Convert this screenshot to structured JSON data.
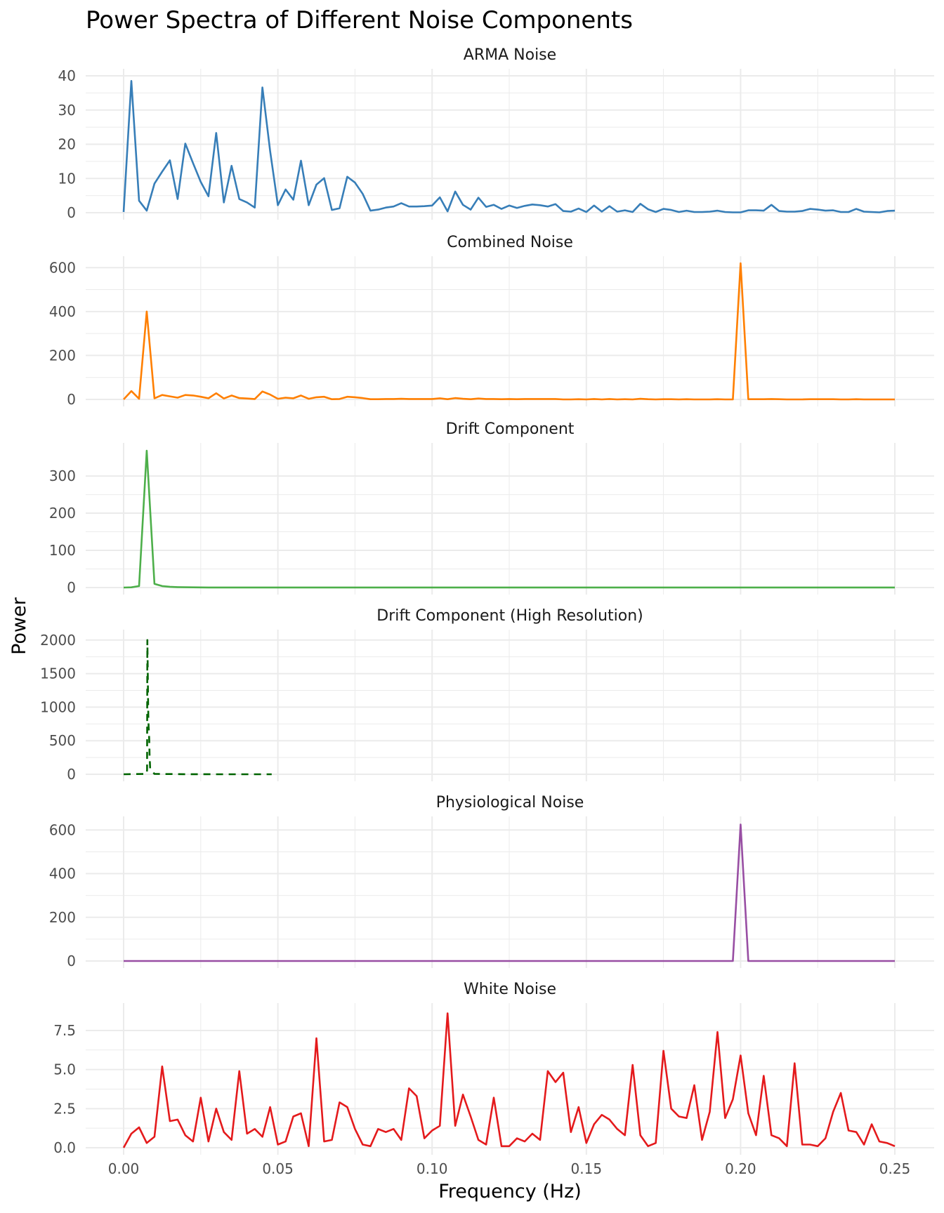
{
  "chart_data": {
    "type": "line",
    "title": "Power Spectra of Different Noise Components",
    "xlabel": "Frequency (Hz)",
    "ylabel": "Power",
    "xlim": [
      0,
      0.25
    ],
    "x_ticks": [
      "0.00",
      "0.05",
      "0.10",
      "0.15",
      "0.20",
      "0.25"
    ],
    "grid": true,
    "legend": "none",
    "panels": [
      {
        "name": "ARMA Noise",
        "color": "#377EB8",
        "dash": false,
        "ylim": [
          0,
          40
        ],
        "y_ticks": [
          0,
          10,
          20,
          30,
          40
        ],
        "y_tick_labels": [
          "0",
          "10",
          "20",
          "30",
          "40"
        ],
        "x_step": 0.0025,
        "values": [
          0.2,
          38.5,
          3.5,
          0.6,
          8.5,
          12.0,
          15.3,
          4.0,
          20.2,
          14.5,
          9.0,
          4.8,
          23.3,
          3.0,
          13.7,
          4.0,
          3.0,
          1.5,
          36.6,
          18.0,
          2.2,
          6.8,
          3.8,
          15.2,
          2.2,
          8.2,
          10.1,
          0.8,
          1.3,
          10.5,
          8.8,
          5.5,
          0.6,
          0.9,
          1.5,
          1.8,
          2.8,
          1.8,
          1.8,
          1.9,
          2.1,
          4.5,
          0.4,
          6.2,
          2.3,
          0.9,
          4.4,
          1.7,
          2.3,
          1.1,
          2.1,
          1.4,
          2.0,
          2.4,
          2.2,
          1.8,
          2.5,
          0.5,
          0.3,
          1.2,
          0.2,
          2.1,
          0.3,
          1.9,
          0.3,
          0.7,
          0.2,
          2.6,
          1.0,
          0.2,
          1.1,
          0.8,
          0.2,
          0.6,
          0.2,
          0.2,
          0.3,
          0.6,
          0.2,
          0.1,
          0.1,
          0.7,
          0.7,
          0.6,
          2.3,
          0.5,
          0.3,
          0.3,
          0.5,
          1.1,
          0.9,
          0.6,
          0.7,
          0.2,
          0.2,
          1.1,
          0.3,
          0.2,
          0.1,
          0.5,
          0.6
        ]
      },
      {
        "name": "Combined Noise",
        "color": "#FF7F00",
        "dash": false,
        "ylim": [
          0,
          620
        ],
        "y_ticks": [
          0,
          200,
          400,
          600
        ],
        "y_tick_labels": [
          "0",
          "200",
          "400",
          "600"
        ],
        "x_step": 0.0025,
        "values": [
          0,
          38,
          3,
          400,
          5,
          20,
          14,
          8,
          20,
          18,
          12,
          5,
          28,
          4,
          18,
          6,
          4,
          2,
          36,
          22,
          3,
          8,
          5,
          18,
          3,
          10,
          12,
          1,
          2,
          12,
          10,
          6,
          1,
          1,
          2,
          2,
          3,
          2,
          2,
          2,
          2,
          5,
          1,
          6,
          3,
          1,
          4,
          2,
          2,
          1,
          2,
          1,
          2,
          2,
          2,
          2,
          2,
          0,
          0,
          1,
          0,
          2,
          0,
          2,
          0,
          1,
          0,
          3,
          1,
          0,
          1,
          1,
          0,
          1,
          0,
          0,
          0,
          1,
          0,
          0,
          620,
          1,
          1,
          1,
          2,
          1,
          0,
          0,
          0,
          1,
          1,
          1,
          1,
          0,
          0,
          1,
          0,
          0,
          0,
          0,
          0
        ]
      },
      {
        "name": "Drift Component",
        "color": "#4DAF4A",
        "dash": false,
        "ylim": [
          0,
          370
        ],
        "y_ticks": [
          0,
          100,
          200,
          300
        ],
        "y_tick_labels": [
          "0",
          "100",
          "200",
          "300"
        ],
        "x_step": 0.0025,
        "values": [
          0,
          0.5,
          4,
          368,
          10,
          4,
          2,
          1.2,
          0.8,
          0.5,
          0.3,
          0.2,
          0.1,
          0.1,
          0.1,
          0.1,
          0.1,
          0.1,
          0.1,
          0.1,
          0.1,
          0.1,
          0.1,
          0.1,
          0.1,
          0.1,
          0.1,
          0.1,
          0.1,
          0.1,
          0.1,
          0.1,
          0.1,
          0.1,
          0.1,
          0.1,
          0.1,
          0.1,
          0.1,
          0.1,
          0.1,
          0.1,
          0.1,
          0.1,
          0.1,
          0.1,
          0.1,
          0.1,
          0.1,
          0.1,
          0.1,
          0.1,
          0.1,
          0.1,
          0.1,
          0.1,
          0.1,
          0.1,
          0.1,
          0.1,
          0.1,
          0.1,
          0.1,
          0.1,
          0.1,
          0.1,
          0.1,
          0.1,
          0.1,
          0.1,
          0.1,
          0.1,
          0.1,
          0.1,
          0.1,
          0.1,
          0.1,
          0.1,
          0.1,
          0.1,
          0.1,
          0.1,
          0.1,
          0.1,
          0.1,
          0.1,
          0.1,
          0.1,
          0.1,
          0.1,
          0.1,
          0.1,
          0.1,
          0.1,
          0.1,
          0.1,
          0.1,
          0.1,
          0.1,
          0.1,
          0.1
        ]
      },
      {
        "name": "Drift Component (High Resolution)",
        "color": "#006400",
        "dash": true,
        "ylim": [
          0,
          2050
        ],
        "y_ticks": [
          0,
          500,
          1000,
          1500,
          2000
        ],
        "y_tick_labels": [
          "0",
          "500",
          "1000",
          "1500",
          "2000"
        ],
        "x": [
          0,
          0.0074,
          0.0076,
          0.0077,
          0.0078,
          0.0079,
          0.008,
          0.0081,
          0.0082,
          0.0083,
          0.0084,
          0.0086,
          0.01,
          0.02,
          0.03,
          0.04,
          0.048
        ],
        "values": [
          0,
          5,
          60,
          2000,
          1600,
          1200,
          900,
          700,
          650,
          500,
          300,
          80,
          5,
          1,
          0,
          0,
          0
        ]
      },
      {
        "name": "Physiological Noise",
        "color": "#984EA3",
        "dash": false,
        "ylim": [
          0,
          630
        ],
        "y_ticks": [
          0,
          200,
          400,
          600
        ],
        "y_tick_labels": [
          "0",
          "200",
          "400",
          "600"
        ],
        "x": [
          0,
          0.1975,
          0.2,
          0.2025,
          0.25
        ],
        "values": [
          0,
          0,
          625,
          0,
          0
        ]
      },
      {
        "name": "White Noise",
        "color": "#E41A1C",
        "dash": false,
        "ylim": [
          0,
          8.8
        ],
        "y_ticks": [
          0,
          2.5,
          5,
          7.5
        ],
        "y_tick_labels": [
          "0.0",
          "2.5",
          "5.0",
          "7.5"
        ],
        "x_step": 0.0025,
        "values": [
          0.0,
          0.9,
          1.3,
          0.3,
          0.7,
          5.2,
          1.7,
          1.8,
          0.8,
          0.4,
          3.2,
          0.4,
          2.5,
          1.0,
          0.5,
          4.9,
          0.9,
          1.2,
          0.7,
          2.6,
          0.2,
          0.4,
          2.0,
          2.2,
          0.1,
          7.0,
          0.4,
          0.5,
          2.9,
          2.6,
          1.2,
          0.2,
          0.1,
          1.2,
          1.0,
          1.2,
          0.5,
          3.8,
          3.3,
          0.6,
          1.1,
          1.4,
          8.6,
          1.4,
          3.4,
          2.0,
          0.5,
          0.2,
          3.2,
          0.1,
          0.1,
          0.6,
          0.4,
          0.9,
          0.5,
          4.9,
          4.2,
          4.8,
          1.0,
          2.6,
          0.3,
          1.5,
          2.1,
          1.8,
          1.2,
          0.8,
          5.3,
          0.8,
          0.1,
          0.3,
          6.2,
          2.5,
          2.0,
          1.9,
          4.0,
          0.5,
          2.3,
          7.4,
          1.9,
          3.1,
          5.9,
          2.2,
          0.8,
          4.6,
          0.8,
          0.6,
          0.1,
          5.4,
          0.2,
          0.2,
          0.1,
          0.6,
          2.3,
          3.5,
          1.1,
          1.0,
          0.2,
          1.5,
          0.4,
          0.3,
          0.1
        ]
      }
    ]
  }
}
